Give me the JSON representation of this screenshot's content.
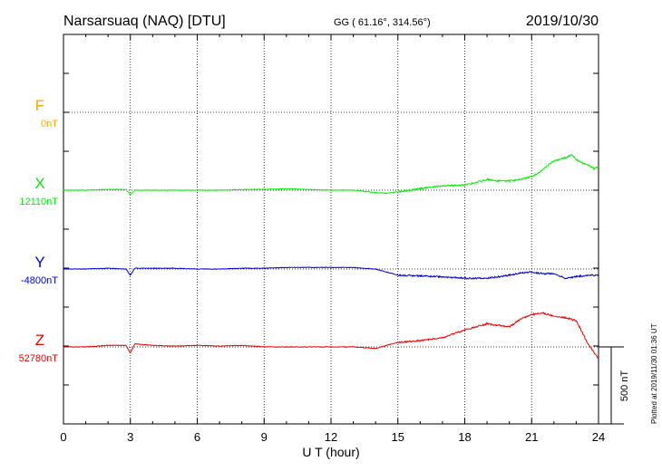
{
  "header": {
    "station": "Narsarsuaq (NAQ)  [DTU]",
    "coords": "GG ( 61.16°, 314.56°)",
    "date": "2019/10/30"
  },
  "side_note": "Plotted at 2019/11/30 01:36 UT",
  "scale_label": "500 nT",
  "colors": {
    "F": "#ffa500",
    "X": "#00ee00",
    "Y": "#0000dd",
    "Z": "#ee0000"
  },
  "chart_data": {
    "type": "line",
    "title": "",
    "xlabel": "U T (hour)",
    "ylabel": "",
    "xlim": [
      0,
      24
    ],
    "x_ticks": [
      "0",
      "3",
      "6",
      "9",
      "12",
      "15",
      "18",
      "21",
      "24"
    ],
    "scale_nT": 500,
    "grid": true,
    "series": [
      {
        "name": "F",
        "baseline": "0nT",
        "values": []
      },
      {
        "name": "X",
        "baseline": "12110nT",
        "x": [
          0,
          1,
          2,
          2.8,
          3.0,
          3.2,
          4,
          5,
          6,
          7,
          8,
          9,
          10,
          11,
          12,
          13,
          14,
          14.5,
          15,
          15.5,
          16,
          16.5,
          17,
          17.5,
          18,
          18.5,
          19,
          19.5,
          20,
          20.5,
          21,
          21.3,
          21.6,
          22,
          22.5,
          22.8,
          23,
          23.2,
          23.5,
          23.8,
          24
        ],
        "values": [
          0,
          0,
          5,
          5,
          -30,
          0,
          0,
          0,
          0,
          0,
          5,
          5,
          10,
          5,
          0,
          0,
          -15,
          -20,
          -10,
          0,
          10,
          20,
          30,
          30,
          35,
          50,
          70,
          60,
          60,
          70,
          90,
          110,
          150,
          190,
          210,
          230,
          200,
          180,
          170,
          140,
          150
        ]
      },
      {
        "name": "Y",
        "baseline": "-4800nT",
        "x": [
          0,
          1,
          2,
          2.8,
          3.0,
          3.2,
          4,
          5,
          6,
          7,
          8,
          9,
          10,
          11,
          12,
          13,
          14,
          14.5,
          15,
          16,
          17,
          18,
          19,
          20,
          20.5,
          21,
          21.5,
          22,
          22.5,
          23,
          23.5,
          24
        ],
        "values": [
          0,
          0,
          5,
          0,
          -40,
          5,
          5,
          5,
          0,
          0,
          5,
          5,
          10,
          10,
          10,
          10,
          0,
          -20,
          -40,
          -45,
          -50,
          -60,
          -60,
          -40,
          -25,
          -20,
          -30,
          -30,
          -60,
          -50,
          -40,
          -40
        ]
      },
      {
        "name": "Z",
        "baseline": "52780nT",
        "x": [
          0,
          1,
          2,
          2.8,
          3.0,
          3.2,
          4,
          5,
          6,
          7,
          8,
          9,
          10,
          11,
          12,
          13,
          14,
          14.5,
          15,
          16,
          17,
          18,
          18.5,
          19,
          19.5,
          20,
          20.5,
          21,
          21.5,
          22,
          22.5,
          23,
          23.5,
          24
        ],
        "values": [
          0,
          0,
          10,
          10,
          -40,
          20,
          10,
          5,
          10,
          5,
          10,
          0,
          0,
          0,
          0,
          0,
          -10,
          10,
          30,
          40,
          60,
          110,
          130,
          150,
          140,
          130,
          180,
          210,
          220,
          200,
          190,
          170,
          30,
          -80
        ]
      }
    ]
  }
}
